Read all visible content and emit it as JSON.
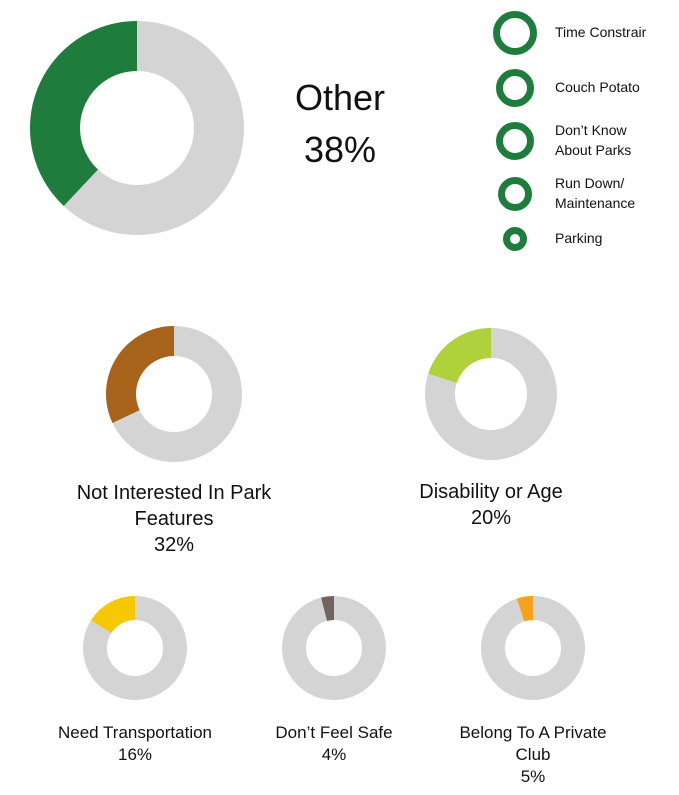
{
  "chart_data": [
    {
      "type": "pie",
      "title": "Other",
      "values": [
        38
      ],
      "value_labels": [
        "38%"
      ],
      "color": "#1e7d3c"
    },
    {
      "type": "pie",
      "title": "Not Interested In Park Features",
      "values": [
        32
      ],
      "value_labels": [
        "32%"
      ],
      "color": "#a8631a"
    },
    {
      "type": "pie",
      "title": "Disability or Age",
      "values": [
        20
      ],
      "value_labels": [
        "20%"
      ],
      "color": "#aed13c"
    },
    {
      "type": "pie",
      "title": "Need Transportation",
      "values": [
        16
      ],
      "value_labels": [
        "16%"
      ],
      "color": "#f6c800"
    },
    {
      "type": "pie",
      "title": "Don’t Feel Safe",
      "values": [
        4
      ],
      "value_labels": [
        "4%"
      ],
      "color": "#736360"
    },
    {
      "type": "pie",
      "title": "Belong To A Private Club",
      "values": [
        5
      ],
      "value_labels": [
        "5%"
      ],
      "color": "#f7a21b"
    }
  ],
  "legend": [
    {
      "lines": [
        "Time Constrair"
      ]
    },
    {
      "lines": [
        "Couch Potato"
      ]
    },
    {
      "lines": [
        "Don’t Know",
        "About Parks"
      ]
    },
    {
      "lines": [
        "Run Down/",
        "Maintenance"
      ]
    },
    {
      "lines": [
        "Parking"
      ]
    }
  ]
}
